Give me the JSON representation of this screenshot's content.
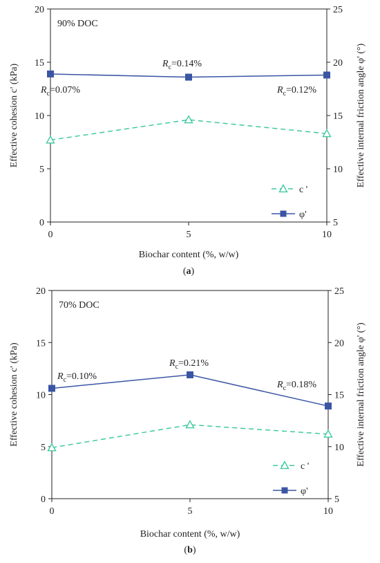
{
  "colors": {
    "cohesion": "#3ec9a0",
    "friction": "#3a55a4",
    "axis": "#222222"
  },
  "chart_data": [
    {
      "type": "line",
      "panel_title": "90% DOC",
      "caption": {
        "open": "(",
        "letter": "a",
        "close": ")"
      },
      "xlabel": "Biochar content (%, w/w)",
      "ylabel": "Effective cohesion c' (kPa)",
      "y2label": "Effective internal friction angle φ' (°)",
      "x": [
        0,
        5,
        10
      ],
      "xticks": [
        "0",
        "5",
        "10"
      ],
      "xlim": [
        0,
        10
      ],
      "ylim": [
        0,
        20
      ],
      "yticks": [
        "0",
        "5",
        "10",
        "15",
        "20"
      ],
      "y2lim": [
        5,
        25
      ],
      "y2ticks": [
        "5",
        "10",
        "15",
        "20",
        "25"
      ],
      "series": [
        {
          "name": "c '",
          "axis": "left",
          "marker": "triangle",
          "style": "dashed",
          "values": [
            7.7,
            9.6,
            8.3
          ]
        },
        {
          "name": "φ'",
          "axis": "right",
          "marker": "square",
          "style": "solid",
          "values": [
            18.9,
            18.6,
            18.8
          ]
        }
      ],
      "annotations": [
        {
          "sym": "R",
          "sub": "c",
          "text": "=0.07%",
          "x": 0
        },
        {
          "sym": "R",
          "sub": "c",
          "text": "=0.14%",
          "x": 5
        },
        {
          "sym": "R",
          "sub": "c",
          "text": "=0.12%",
          "x": 10
        }
      ],
      "legend": "bottom-right"
    },
    {
      "type": "line",
      "panel_title": "70% DOC",
      "caption": {
        "open": "(",
        "letter": "b",
        "close": ")"
      },
      "xlabel": "Biochar content (%, w/w)",
      "ylabel": "Effective cohesion c' (kPa)",
      "y2label": "Effective internal friction angle φ' (°)",
      "x": [
        0,
        5,
        10
      ],
      "xticks": [
        "0",
        "5",
        "10"
      ],
      "xlim": [
        0,
        10
      ],
      "ylim": [
        0,
        20
      ],
      "yticks": [
        "0",
        "5",
        "10",
        "15",
        "20"
      ],
      "y2lim": [
        5,
        25
      ],
      "y2ticks": [
        "5",
        "10",
        "15",
        "20",
        "25"
      ],
      "series": [
        {
          "name": "c '",
          "axis": "left",
          "marker": "triangle",
          "style": "dashed",
          "values": [
            4.9,
            7.1,
            6.2
          ]
        },
        {
          "name": "φ'",
          "axis": "right",
          "marker": "square",
          "style": "solid",
          "values": [
            15.6,
            16.9,
            13.9
          ]
        }
      ],
      "annotations": [
        {
          "sym": "R",
          "sub": "c",
          "text": "=0.10%",
          "x": 0
        },
        {
          "sym": "R",
          "sub": "c",
          "text": "=0.21%",
          "x": 5
        },
        {
          "sym": "R",
          "sub": "c",
          "text": "=0.18%",
          "x": 10
        }
      ],
      "legend": "bottom-right"
    }
  ]
}
